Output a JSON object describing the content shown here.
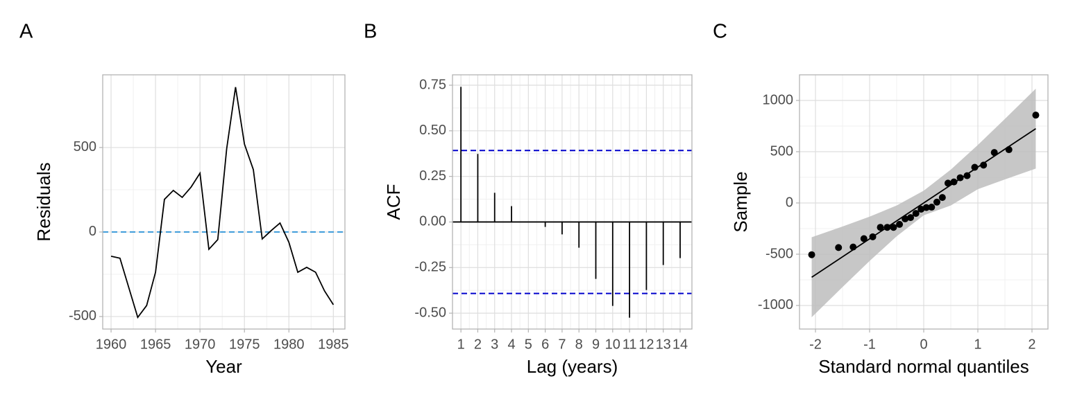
{
  "chart_data": [
    {
      "type": "line",
      "tag": "A",
      "xlabel": "Year",
      "ylabel": "Residuals",
      "x": [
        1960,
        1961,
        1962,
        1963,
        1964,
        1965,
        1966,
        1967,
        1968,
        1969,
        1970,
        1971,
        1972,
        1973,
        1974,
        1975,
        1976,
        1977,
        1978,
        1979,
        1980,
        1981,
        1982,
        1983,
        1984,
        1985
      ],
      "values": [
        -143,
        -155,
        -330,
        -505,
        -435,
        -238,
        193,
        246,
        205,
        266,
        348,
        -102,
        -45,
        492,
        857,
        520,
        369,
        -41,
        8,
        53,
        -61,
        -238,
        -209,
        -238,
        -348,
        -430
      ],
      "color": "#000000",
      "hline": {
        "value": 0,
        "color": "#3a9ad9"
      },
      "xlim": [
        1959.06,
        1986.3
      ],
      "ylim": [
        -574,
        930
      ],
      "xticks": [
        1960,
        1965,
        1970,
        1975,
        1980,
        1985
      ],
      "yticks": [
        -500,
        0,
        500
      ],
      "grid": true
    },
    {
      "type": "bar",
      "tag": "B",
      "xlabel": "Lag (years)",
      "ylabel": "ACF",
      "x": [
        1,
        2,
        3,
        4,
        5,
        6,
        7,
        8,
        9,
        10,
        11,
        12,
        13,
        14
      ],
      "values": [
        0.741,
        0.373,
        0.16,
        0.087,
        0.002,
        -0.027,
        -0.068,
        -0.141,
        -0.312,
        -0.46,
        -0.525,
        -0.373,
        -0.236,
        -0.198
      ],
      "color": "#000000",
      "ci": [
        0.392,
        -0.392
      ],
      "ci_color": "#0000cc",
      "xlim": [
        0.5,
        14.7
      ],
      "ylim": [
        -0.587,
        0.807
      ],
      "xticks": [
        1,
        2,
        3,
        4,
        5,
        6,
        7,
        8,
        9,
        10,
        11,
        12,
        13,
        14
      ],
      "yticks": [
        {
          "value": -0.5,
          "label": "-0.50"
        },
        -0.25,
        {
          "value": 0,
          "label": "0.00"
        },
        0.25,
        {
          "value": 0.5,
          "label": "0.50"
        },
        0.75
      ],
      "grid": true
    },
    {
      "type": "scatter",
      "tag": "C",
      "xlabel": "Standard normal quantiles",
      "ylabel": "Sample",
      "x": [
        -2.07,
        -1.574,
        -1.304,
        -1.105,
        -0.942,
        -0.801,
        -0.674,
        -0.558,
        -0.448,
        -0.344,
        -0.243,
        -0.145,
        -0.048,
        0.048,
        0.145,
        0.243,
        0.344,
        0.448,
        0.558,
        0.674,
        0.801,
        0.942,
        1.105,
        1.304,
        1.574,
        2.07
      ],
      "values": [
        -505,
        -435,
        -430,
        -348,
        -330,
        -238,
        -238,
        -238,
        -209,
        -155,
        -143,
        -102,
        -61,
        -45,
        -41,
        8,
        53,
        193,
        205,
        246,
        266,
        348,
        369,
        492,
        520,
        857
      ],
      "color": "#000000",
      "fit": {
        "x": [
          -2.07,
          2.07
        ],
        "values": [
          -725,
          725
        ]
      },
      "band": {
        "x": [
          -2.07,
          -1.5,
          -1,
          -0.5,
          0,
          0.5,
          1,
          1.5,
          2.07
        ],
        "lower": [
          -1115,
          -820,
          -566,
          -325,
          -120,
          -25,
          134,
          230,
          335
        ],
        "upper": [
          -335,
          -230,
          -134,
          -25,
          120,
          325,
          566,
          820,
          1115
        ],
        "color": "#bdbdbd"
      },
      "xlim": [
        -2.295,
        2.295
      ],
      "ylim": [
        -1230,
        1250
      ],
      "xticks": [
        -2,
        -1,
        0,
        1,
        2
      ],
      "yticks": [
        -1000,
        -500,
        0,
        500,
        1000
      ],
      "grid": true
    }
  ]
}
